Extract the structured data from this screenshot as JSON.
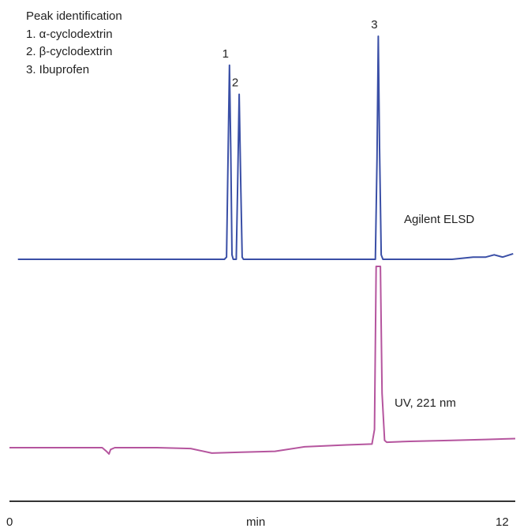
{
  "legend": {
    "title": "Peak identification",
    "items": [
      "1. α-cyclodextrin",
      "2. β-cyclodextrin",
      "3. Ibuprofen"
    ]
  },
  "chart_data": {
    "type": "line",
    "title": "",
    "xlabel": "min",
    "ylabel": "",
    "xlim": [
      0,
      12
    ],
    "x_ticks": [
      "0",
      "12"
    ],
    "grid": false,
    "series": [
      {
        "name": "Agilent ELSD",
        "color": "#3a4fa6",
        "baseline": 0,
        "points": [
          [
            0.2,
            0
          ],
          [
            1.0,
            0
          ],
          [
            2.0,
            0
          ],
          [
            3.0,
            0
          ],
          [
            4.0,
            0
          ],
          [
            4.9,
            0
          ],
          [
            5.1,
            0
          ],
          [
            5.15,
            0.01
          ],
          [
            5.19,
            0.5
          ],
          [
            5.22,
            0.87
          ],
          [
            5.25,
            0.5
          ],
          [
            5.28,
            0.02
          ],
          [
            5.31,
            0
          ],
          [
            5.38,
            0
          ],
          [
            5.41,
            0.3
          ],
          [
            5.45,
            0.74
          ],
          [
            5.49,
            0.3
          ],
          [
            5.52,
            0.01
          ],
          [
            5.55,
            0
          ],
          [
            6.0,
            0
          ],
          [
            7.0,
            0
          ],
          [
            8.5,
            0
          ],
          [
            8.68,
            0
          ],
          [
            8.72,
            0.45
          ],
          [
            8.75,
            1.0
          ],
          [
            8.78,
            0.5
          ],
          [
            8.82,
            0.02
          ],
          [
            8.86,
            0
          ],
          [
            9.5,
            0
          ],
          [
            10.5,
            0
          ],
          [
            11.0,
            0.01
          ],
          [
            11.3,
            0.01
          ],
          [
            11.5,
            0.02
          ],
          [
            11.7,
            0.01
          ],
          [
            11.95,
            0.025
          ]
        ],
        "peak_labels": [
          {
            "text": "1",
            "x": 5.22,
            "y": 0.87
          },
          {
            "text": "2",
            "x": 5.45,
            "y": 0.74
          },
          {
            "text": "3",
            "x": 8.75,
            "y": 1.0
          }
        ]
      },
      {
        "name": "UV, 221 nm",
        "color": "#b5559e",
        "baseline": 0,
        "points": [
          [
            0.0,
            0
          ],
          [
            1.0,
            0
          ],
          [
            2.2,
            0
          ],
          [
            2.3,
            -0.02
          ],
          [
            2.36,
            -0.035
          ],
          [
            2.4,
            -0.01
          ],
          [
            2.5,
            0
          ],
          [
            3.5,
            0
          ],
          [
            4.3,
            -0.005
          ],
          [
            4.8,
            -0.03
          ],
          [
            5.5,
            -0.025
          ],
          [
            6.3,
            -0.02
          ],
          [
            7.0,
            0.005
          ],
          [
            8.0,
            0.015
          ],
          [
            8.6,
            0.02
          ],
          [
            8.66,
            0.1
          ],
          [
            8.7,
            1.0
          ],
          [
            8.74,
            1.0
          ],
          [
            8.8,
            1.0
          ],
          [
            8.84,
            0.3
          ],
          [
            8.9,
            0.04
          ],
          [
            8.95,
            0.03
          ],
          [
            9.5,
            0.035
          ],
          [
            10.5,
            0.04
          ],
          [
            11.3,
            0.045
          ],
          [
            12.0,
            0.05
          ]
        ]
      }
    ]
  }
}
